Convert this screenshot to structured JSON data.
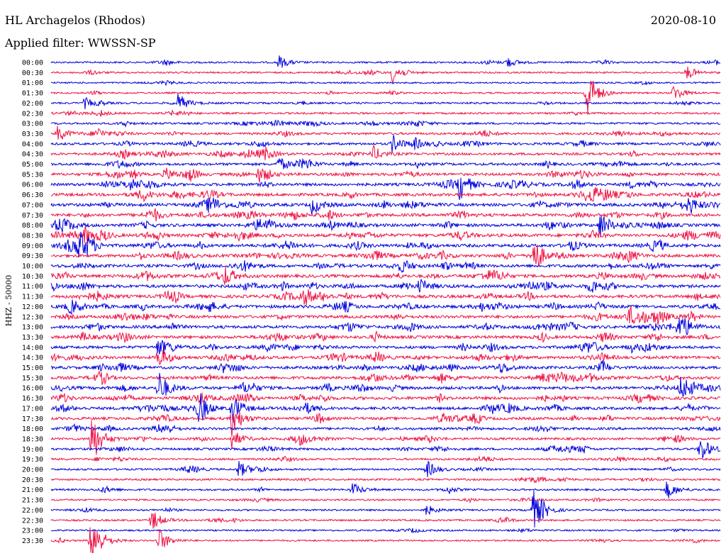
{
  "header": {
    "station": "HL Archagelos (Rhodos)",
    "date": "2020-08-10",
    "filter": "Applied filter: WWSSN-SP"
  },
  "chart_data": {
    "type": "line",
    "ylabel": "HHZ - 50000",
    "trace_colors": [
      "#0000dd",
      "#ee1144"
    ],
    "rows": [
      "00:00",
      "00:30",
      "01:00",
      "01:30",
      "02:00",
      "02:30",
      "03:00",
      "03:30",
      "04:00",
      "04:30",
      "05:00",
      "05:30",
      "06:00",
      "06:30",
      "07:00",
      "07:30",
      "08:00",
      "08:30",
      "09:00",
      "09:30",
      "10:00",
      "10:30",
      "11:00",
      "11:30",
      "12:00",
      "12:30",
      "13:00",
      "13:30",
      "14:00",
      "14:30",
      "15:00",
      "15:30",
      "16:00",
      "16:30",
      "17:00",
      "17:30",
      "18:00",
      "18:30",
      "19:00",
      "19:30",
      "20:00",
      "20:30",
      "21:00",
      "21:30",
      "22:00",
      "22:30",
      "23:00",
      "23:30"
    ],
    "activity": [
      0.25,
      0.2,
      0.15,
      0.2,
      0.3,
      0.3,
      0.35,
      0.45,
      0.5,
      0.55,
      0.6,
      0.65,
      0.7,
      0.75,
      0.8,
      0.75,
      0.8,
      0.8,
      0.8,
      0.75,
      0.75,
      0.8,
      0.8,
      0.8,
      0.8,
      0.75,
      0.75,
      0.75,
      0.7,
      0.7,
      0.7,
      0.75,
      0.75,
      0.75,
      0.7,
      0.65,
      0.55,
      0.5,
      0.45,
      0.35,
      0.3,
      0.3,
      0.3,
      0.25,
      0.25,
      0.25,
      0.2,
      0.2
    ],
    "events": [
      {
        "row": 0,
        "x": 0.34,
        "amp": 10
      },
      {
        "row": 0,
        "x": 0.68,
        "amp": 8
      },
      {
        "row": 1,
        "x": 0.51,
        "amp": 16
      },
      {
        "row": 1,
        "x": 0.95,
        "amp": 10
      },
      {
        "row": 3,
        "x": 0.8,
        "amp": 40
      },
      {
        "row": 3,
        "x": 0.93,
        "amp": 12
      },
      {
        "row": 4,
        "x": 0.19,
        "amp": 12
      },
      {
        "row": 4,
        "x": 0.05,
        "amp": 8
      },
      {
        "row": 7,
        "x": 0.01,
        "amp": 12
      },
      {
        "row": 8,
        "x": 0.51,
        "amp": 14
      },
      {
        "row": 8,
        "x": 0.54,
        "amp": 10
      },
      {
        "row": 9,
        "x": 0.48,
        "amp": 12
      },
      {
        "row": 10,
        "x": 0.34,
        "amp": 10
      },
      {
        "row": 11,
        "x": 0.17,
        "amp": 10
      },
      {
        "row": 11,
        "x": 0.31,
        "amp": 12
      },
      {
        "row": 12,
        "x": 0.61,
        "amp": 22
      },
      {
        "row": 14,
        "x": 0.39,
        "amp": 14
      },
      {
        "row": 16,
        "x": 0.82,
        "amp": 20
      },
      {
        "row": 17,
        "x": 0.05,
        "amp": 14
      },
      {
        "row": 18,
        "x": 0.04,
        "amp": 16
      },
      {
        "row": 19,
        "x": 0.72,
        "amp": 22
      },
      {
        "row": 21,
        "x": 0.26,
        "amp": 14
      },
      {
        "row": 22,
        "x": 0.55,
        "amp": 12
      },
      {
        "row": 26,
        "x": 0.94,
        "amp": 18
      },
      {
        "row": 28,
        "x": 0.16,
        "amp": 14
      },
      {
        "row": 29,
        "x": 0.16,
        "amp": 18
      },
      {
        "row": 32,
        "x": 0.16,
        "amp": 26
      },
      {
        "row": 32,
        "x": 0.94,
        "amp": 14
      },
      {
        "row": 34,
        "x": 0.22,
        "amp": 16
      },
      {
        "row": 34,
        "x": 0.27,
        "amp": 22
      },
      {
        "row": 35,
        "x": 0.27,
        "amp": 26
      },
      {
        "row": 37,
        "x": 0.06,
        "amp": 40
      },
      {
        "row": 37,
        "x": 0.27,
        "amp": 14
      },
      {
        "row": 38,
        "x": 0.97,
        "amp": 20
      },
      {
        "row": 40,
        "x": 0.28,
        "amp": 12
      },
      {
        "row": 40,
        "x": 0.56,
        "amp": 14
      },
      {
        "row": 42,
        "x": 0.45,
        "amp": 10
      },
      {
        "row": 42,
        "x": 0.92,
        "amp": 14
      },
      {
        "row": 44,
        "x": 0.72,
        "amp": 28
      },
      {
        "row": 44,
        "x": 0.56,
        "amp": 8
      },
      {
        "row": 45,
        "x": 0.15,
        "amp": 16
      },
      {
        "row": 47,
        "x": 0.06,
        "amp": 46
      },
      {
        "row": 47,
        "x": 0.16,
        "amp": 20
      }
    ]
  }
}
